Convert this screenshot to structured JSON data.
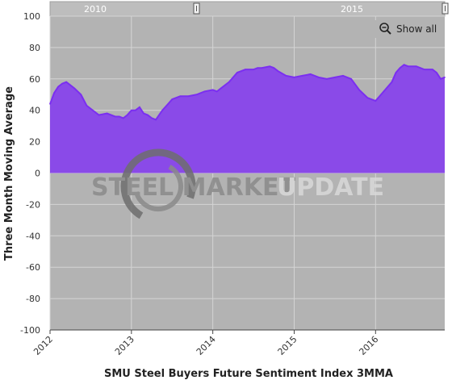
{
  "navigator": {
    "labels": [
      "2010",
      "2015"
    ]
  },
  "controls": {
    "show_all_label": "Show all",
    "zoom_icon": "magnifier-minus-icon"
  },
  "watermark": {
    "part1": "STEEL MARKET",
    "part2": "UPDATE"
  },
  "colors": {
    "plot_background": "#b3b3b3",
    "series_fill": "#8a4ae8",
    "series_line": "#7b2ff0",
    "watermark_dark": "#8a8a8a",
    "watermark_light": "#d9d9d9"
  },
  "chart_data": {
    "type": "area",
    "title": "",
    "xlabel": "SMU Steel Buyers Future Sentiment Index 3MMA",
    "ylabel": "Three Month Moving Average",
    "ylim": [
      -100,
      100
    ],
    "yticks": [
      100,
      80,
      60,
      40,
      20,
      0,
      -20,
      -40,
      -60,
      -80,
      -100
    ],
    "xlim": [
      2012.0,
      2016.85
    ],
    "xticks": [
      "2012",
      "2013",
      "2014",
      "2015",
      "2016"
    ],
    "grid": true,
    "legend": "none",
    "series": [
      {
        "x": [
          2012.0,
          2012.05,
          2012.1,
          2012.15,
          2012.2,
          2012.25,
          2012.3,
          2012.38,
          2012.45,
          2012.5,
          2012.6,
          2012.7,
          2012.8,
          2012.85,
          2012.9,
          2012.95,
          2013.0,
          2013.05,
          2013.1,
          2013.15,
          2013.2,
          2013.25,
          2013.3,
          2013.38,
          2013.45,
          2013.5,
          2013.6,
          2013.7,
          2013.8,
          2013.9,
          2014.0,
          2014.05,
          2014.1,
          2014.2,
          2014.3,
          2014.4,
          2014.5,
          2014.55,
          2014.6,
          2014.7,
          2014.75,
          2014.8,
          2014.9,
          2015.0,
          2015.1,
          2015.2,
          2015.3,
          2015.4,
          2015.5,
          2015.6,
          2015.7,
          2015.8,
          2015.9,
          2016.0,
          2016.1,
          2016.2,
          2016.25,
          2016.3,
          2016.35,
          2016.4,
          2016.5,
          2016.55,
          2016.6,
          2016.7,
          2016.75,
          2016.8,
          2016.85
        ],
        "values": [
          44,
          51,
          55,
          57,
          58,
          56,
          54,
          50,
          43,
          41,
          37,
          38,
          36,
          36,
          35,
          37,
          40,
          40,
          42,
          38,
          37,
          35,
          34,
          40,
          44,
          47,
          49,
          49,
          50,
          52,
          53,
          52,
          54,
          58,
          64,
          66,
          66,
          67,
          67,
          68,
          67,
          65,
          62,
          61,
          62,
          63,
          61,
          60,
          61,
          62,
          60,
          53,
          48,
          46,
          52,
          58,
          64,
          67,
          69,
          68,
          68,
          67,
          66,
          66,
          64,
          60,
          61
        ]
      }
    ]
  }
}
